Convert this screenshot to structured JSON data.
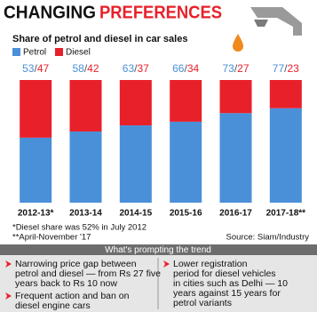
{
  "chart_data": {
    "type": "stacked_bar",
    "title_part1": "CHANGING",
    "title_part2": "PREFERENCES",
    "subtitle": "Share of petrol and diesel in car sales",
    "categories": [
      "2012-13*",
      "2013-14",
      "2014-15",
      "2015-16",
      "2016-17",
      "2017-18**"
    ],
    "series": [
      {
        "name": "Petrol",
        "color": "#4a90d9",
        "values": [
          53,
          58,
          63,
          66,
          73,
          77
        ]
      },
      {
        "name": "Diesel",
        "color": "#e8202a",
        "values": [
          47,
          42,
          37,
          34,
          27,
          23
        ]
      }
    ],
    "label_separator": "/",
    "ylim": [
      0,
      100
    ],
    "notes": [
      "*Diesel share was 52% in July 2012",
      "**April-November '17"
    ],
    "source": "Source: Siam/Industry"
  },
  "panel": {
    "heading": "What's prompting the trend",
    "left": [
      [
        "Narrowing price gap between",
        "petrol and diesel — from Rs 27 five",
        "years back to Rs 10 now"
      ],
      [
        "Frequent action and ban on",
        "diesel engine cars"
      ]
    ],
    "right": [
      [
        "Lower registration",
        "period for diesel vehicles",
        "in cities such as Delhi — 10",
        "years against 15 years for",
        "petrol variants"
      ]
    ]
  }
}
